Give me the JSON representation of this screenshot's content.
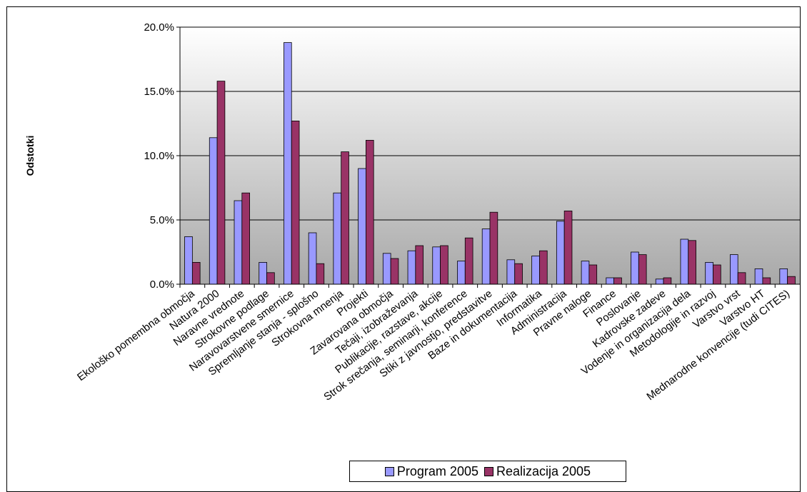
{
  "chart_data": {
    "type": "bar",
    "ylabel": "Odstotki",
    "xlabel": "",
    "ylim": [
      0,
      20
    ],
    "yticks": [
      "0.0%",
      "5.0%",
      "10.0%",
      "15.0%",
      "20.0%"
    ],
    "grid": true,
    "legend_position": "bottom",
    "categories": [
      "Ekološko pomembna območja",
      "Natura 2000",
      "Naravne vrednote",
      "Strokovne podlage",
      "Naravovarstvene smernice",
      "Spremljanje stanja - splošno",
      "Strokovna mnenja",
      "Projekti",
      "Zavarovana območja",
      "Tečaji, izobraževanja",
      "Publikacije, razstave, akcije",
      "Strok srečanja, seminarji, konference",
      "Stiki z javnostjo, predstavitve",
      "Baze in dokumentacija",
      "Informatika",
      "Administracija",
      "Pravne naloge",
      "Finance",
      "Poslovanje",
      "Kadrovske zadeve",
      "Vodenje in organizacija dela",
      "Metodologije in razvoj",
      "Varstvo vrst",
      "Varstvo HT",
      "Mednarodne konvencije (tudi CITES)"
    ],
    "series": [
      {
        "name": "Program 2005",
        "color": "#9999ff",
        "values": [
          3.7,
          11.4,
          6.5,
          1.7,
          18.8,
          4.0,
          7.1,
          9.0,
          2.4,
          2.6,
          2.9,
          1.8,
          4.3,
          1.9,
          2.2,
          4.9,
          1.8,
          0.5,
          2.5,
          0.4,
          3.5,
          1.7,
          2.3,
          1.2,
          1.2
        ]
      },
      {
        "name": "Realizacija 2005",
        "color": "#993366",
        "values": [
          1.7,
          15.8,
          7.1,
          0.9,
          12.7,
          1.6,
          10.3,
          11.2,
          2.0,
          3.0,
          3.0,
          3.6,
          5.6,
          1.6,
          2.6,
          5.7,
          1.5,
          0.5,
          2.3,
          0.5,
          3.4,
          1.5,
          0.9,
          0.5,
          0.6
        ]
      }
    ]
  }
}
